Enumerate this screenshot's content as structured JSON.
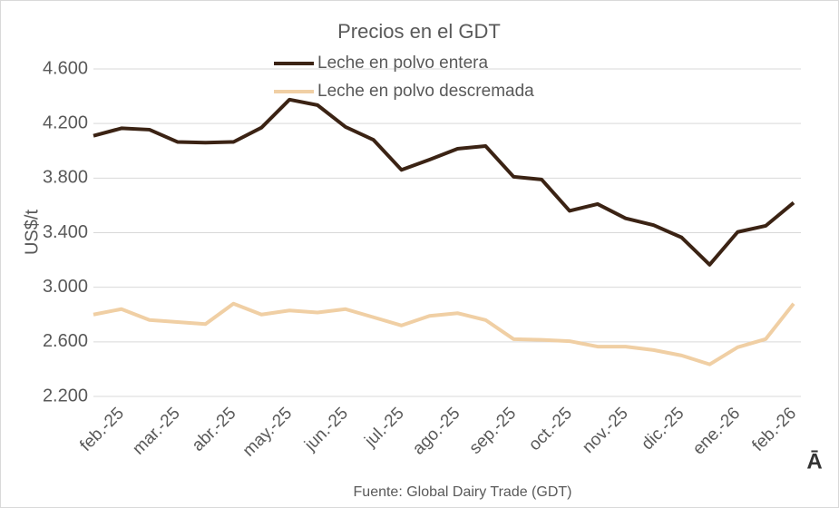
{
  "chart_data": {
    "type": "line",
    "title": "Precios en el GDT",
    "y_label": "US$/t",
    "source": "Fuente: Global Dairy Trade (GDT)",
    "corner_mark": "Ā",
    "categories": [
      null,
      "feb.-25",
      null,
      "mar.-25",
      null,
      "abr.-25",
      null,
      "may.-25",
      null,
      "jun.-25",
      null,
      "jul.-25",
      null,
      "ago.-25",
      null,
      "sep.-25",
      null,
      "oct.-25",
      null,
      "nov.-25",
      null,
      "dic.-25",
      null,
      "ene.-26",
      null,
      "feb.-26"
    ],
    "series": [
      {
        "name": "Leche en polvo entera",
        "color": "#3b2314",
        "values": [
          4110,
          4165,
          4155,
          4065,
          4060,
          4065,
          4170,
          4375,
          4335,
          4175,
          4080,
          3860,
          3935,
          4015,
          4035,
          3810,
          3790,
          3560,
          3610,
          3505,
          3455,
          3365,
          3165,
          3405,
          3450,
          3620
        ]
      },
      {
        "name": "Leche en polvo descremada",
        "color": "#f0cfa4",
        "values": [
          2800,
          2840,
          2760,
          2745,
          2730,
          2880,
          2800,
          2830,
          2815,
          2840,
          2780,
          2720,
          2790,
          2810,
          2760,
          2620,
          2615,
          2605,
          2565,
          2565,
          2540,
          2500,
          2435,
          2560,
          2620,
          2880
        ]
      }
    ],
    "ylim": [
      2200,
      4600
    ],
    "yticks": [
      {
        "value": 2200,
        "label": "2.200"
      },
      {
        "value": 2600,
        "label": "2.600"
      },
      {
        "value": 3000,
        "label": "3.000"
      },
      {
        "value": 3400,
        "label": "3.400"
      },
      {
        "value": 3800,
        "label": "3.800"
      },
      {
        "value": 4200,
        "label": "4.200"
      },
      {
        "value": 4600,
        "label": "4.600"
      }
    ],
    "grid": true
  }
}
